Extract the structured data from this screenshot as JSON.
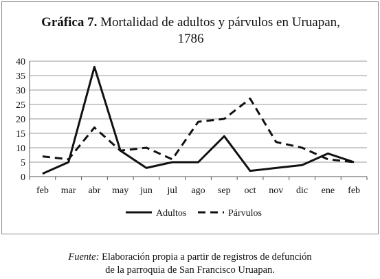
{
  "chart_data": {
    "type": "line",
    "title_bold": "Gráfica 7.",
    "title_rest": "Mortalidad de adultos y párvulos en Uruapan,",
    "title_line2": "1786",
    "categories": [
      "feb",
      "mar",
      "abr",
      "may",
      "jun",
      "jul",
      "ago",
      "sep",
      "oct",
      "nov",
      "dic",
      "ene",
      "feb"
    ],
    "ylim": [
      0,
      40
    ],
    "yticks": [
      0,
      5,
      10,
      15,
      20,
      25,
      30,
      35,
      40
    ],
    "grid": true,
    "legend_position": "bottom",
    "series": [
      {
        "name": "Adultos",
        "style": "solid",
        "values": [
          1,
          5,
          38,
          9,
          3,
          5,
          5,
          14,
          2,
          3,
          4,
          8,
          5
        ]
      },
      {
        "name": "Párvulos",
        "style": "dashed",
        "values": [
          7,
          6,
          17,
          9,
          10,
          6,
          19,
          20,
          27,
          12,
          10,
          6,
          5
        ]
      }
    ]
  },
  "source_note": {
    "label": "Fuente:",
    "line1": "Elaboración propia a partir de registros de defunción",
    "line2": "de la parroquia de San Francisco Uruapan."
  }
}
